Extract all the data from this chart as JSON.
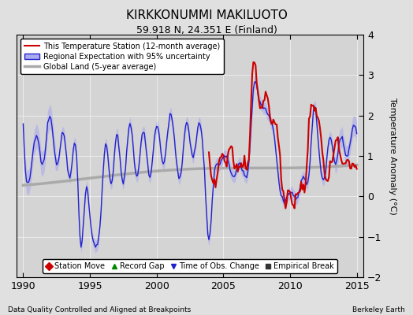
{
  "title": "KIRKKONUMMI MAKILUOTO",
  "subtitle": "59.918 N, 24.351 E (Finland)",
  "ylabel": "Temperature Anomaly (°C)",
  "xlabel_left": "Data Quality Controlled and Aligned at Breakpoints",
  "xlabel_right": "Berkeley Earth",
  "xlim": [
    1989.5,
    2015.5
  ],
  "ylim": [
    -2,
    4
  ],
  "yticks": [
    -2,
    -1,
    0,
    1,
    2,
    3,
    4
  ],
  "xticks": [
    1990,
    1995,
    2000,
    2005,
    2010,
    2015
  ],
  "bg_color": "#e0e0e0",
  "plot_bg": "#d8d8d8",
  "blue_line_color": "#2222cc",
  "blue_fill_color": "#aaaaee",
  "red_line_color": "#cc0000",
  "gray_line_color": "#aaaaaa",
  "legend_items": [
    {
      "label": "This Temperature Station (12-month average)",
      "color": "#cc0000",
      "lw": 1.5
    },
    {
      "label": "Regional Expectation with 95% uncertainty",
      "color": "#2222cc",
      "lw": 1.2
    },
    {
      "label": "Global Land (5-year average)",
      "color": "#aaaaaa",
      "lw": 2.5
    }
  ],
  "bottom_legend": [
    {
      "label": "Station Move",
      "marker": "D",
      "color": "#cc0000"
    },
    {
      "label": "Record Gap",
      "marker": "^",
      "color": "#008800"
    },
    {
      "label": "Time of Obs. Change",
      "marker": "v",
      "color": "#2222cc"
    },
    {
      "label": "Empirical Break",
      "marker": "s",
      "color": "#333333"
    }
  ]
}
